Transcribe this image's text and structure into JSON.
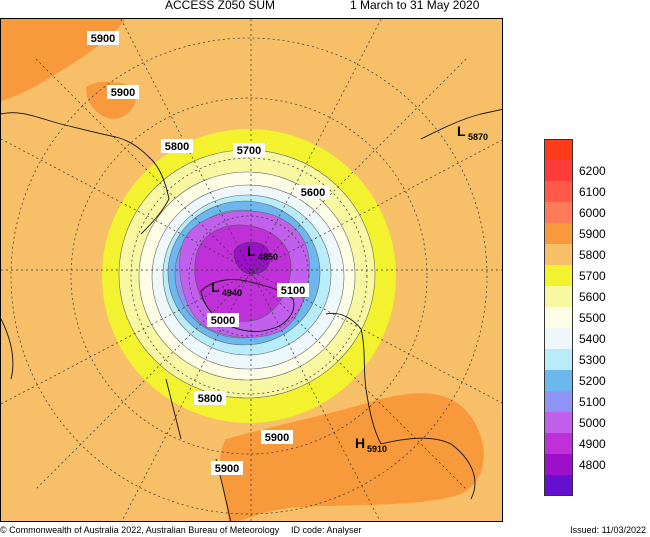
{
  "header": {
    "title": "ACCESS Z050 SUM",
    "period": "1 March to 31 May 2020"
  },
  "map": {
    "contour_labels": [
      "5900",
      "5900",
      "5800",
      "5700",
      "5600",
      "5100",
      "5000",
      "5800",
      "5900",
      "5900"
    ],
    "lows": [
      {
        "letter": "L",
        "value": "4850"
      },
      {
        "letter": "L",
        "value": "4940"
      },
      {
        "letter": "L",
        "value": "5870"
      }
    ],
    "highs": [
      {
        "letter": "H",
        "value": "5910"
      }
    ]
  },
  "legend": {
    "items": [
      {
        "label": "",
        "color": "#ff3b1a"
      },
      {
        "label": "6200",
        "color": "#ff3b3b"
      },
      {
        "label": "6100",
        "color": "#ff5a4a"
      },
      {
        "label": "6000",
        "color": "#ff7a5a"
      },
      {
        "label": "5900",
        "color": "#f89a3c"
      },
      {
        "label": "5800",
        "color": "#f7bf67"
      },
      {
        "label": "5700",
        "color": "#f2f22e"
      },
      {
        "label": "5600",
        "color": "#f8f8a2"
      },
      {
        "label": "5500",
        "color": "#fdfde6"
      },
      {
        "label": "5400",
        "color": "#eef8fb"
      },
      {
        "label": "5300",
        "color": "#b8ecf9"
      },
      {
        "label": "5200",
        "color": "#6bb7ee"
      },
      {
        "label": "5100",
        "color": "#8f93f3"
      },
      {
        "label": "5000",
        "color": "#c060ec"
      },
      {
        "label": "4900",
        "color": "#c030d8"
      },
      {
        "label": "4800",
        "color": "#9b10c8"
      },
      {
        "label": "",
        "color": "#6410d0"
      }
    ]
  },
  "footer": {
    "copyright": "© Commonwealth of Australia 2022, Australian Bureau of Meteorology",
    "id_code": "ID code: Analyser",
    "issued": "Issued: 11/03/2022"
  }
}
